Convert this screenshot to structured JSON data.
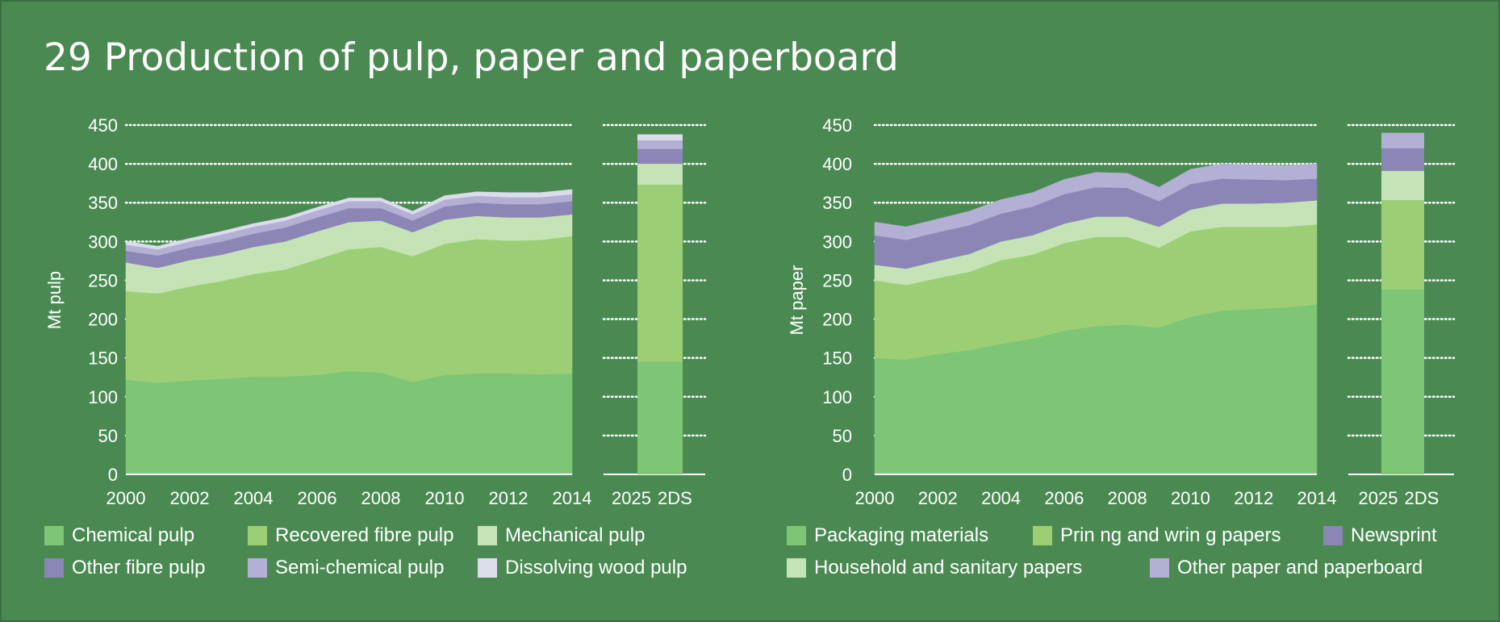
{
  "title": "29 Production of pulp, paper and paperboard",
  "chart_data": [
    {
      "type": "area",
      "stacked": true,
      "ylabel": "Mt pulp",
      "ylim": [
        0,
        450
      ],
      "yticks": [
        "0",
        "50",
        "100",
        "150",
        "200",
        "250",
        "300",
        "350",
        "400",
        "450"
      ],
      "x": [
        2000,
        2001,
        2002,
        2003,
        2004,
        2005,
        2006,
        2007,
        2008,
        2009,
        2010,
        2011,
        2012,
        2013,
        2014
      ],
      "xticks": [
        "2000",
        "2002",
        "2004",
        "2006",
        "2008",
        "2010",
        "2012",
        "2014"
      ],
      "grid": true,
      "legend_position": "bottom",
      "series": [
        {
          "name": "Chemical pulp",
          "color": "#7ec576",
          "values": [
            122,
            118,
            121,
            123,
            126,
            126,
            128,
            133,
            131,
            119,
            128,
            130,
            130,
            129,
            130
          ]
        },
        {
          "name": "Recovered fibre pulp",
          "color": "#9ccf75",
          "values": [
            114,
            115,
            121,
            126,
            132,
            138,
            149,
            157,
            162,
            162,
            169,
            173,
            171,
            173,
            177
          ]
        },
        {
          "name": "Mechanical pulp",
          "color": "#c6e3b5",
          "values": [
            37,
            33,
            34,
            34,
            35,
            36,
            36,
            35,
            34,
            31,
            31,
            30,
            30,
            29,
            28
          ]
        },
        {
          "name": "Other fibre pulp",
          "color": "#8b86b6",
          "values": [
            15,
            16,
            16,
            17,
            17,
            18,
            18,
            18,
            16,
            15,
            17,
            17,
            17,
            17,
            17
          ]
        },
        {
          "name": "Semi-chemical pulp",
          "color": "#b3afd5",
          "values": [
            8,
            8,
            8,
            9,
            9,
            9,
            9,
            9,
            9,
            8,
            9,
            9,
            9,
            9,
            9
          ]
        },
        {
          "name": "Dissolving wood pulp",
          "color": "#dcdcec",
          "values": [
            4,
            4,
            4,
            4,
            4,
            4,
            4,
            4,
            4,
            4,
            5,
            5,
            6,
            6,
            6
          ]
        }
      ],
      "projection": {
        "label_year": "2025",
        "label_scenario": "2DS",
        "values": [
          145,
          228,
          27,
          19,
          11,
          8
        ]
      }
    },
    {
      "type": "area",
      "stacked": true,
      "ylabel": "Mt paper",
      "ylim": [
        0,
        450
      ],
      "yticks": [
        "0",
        "50",
        "100",
        "150",
        "200",
        "250",
        "300",
        "350",
        "400",
        "450"
      ],
      "x": [
        2000,
        2001,
        2002,
        2003,
        2004,
        2005,
        2006,
        2007,
        2008,
        2009,
        2010,
        2011,
        2012,
        2013,
        2014
      ],
      "xticks": [
        "2000",
        "2002",
        "2004",
        "2006",
        "2008",
        "2010",
        "2012",
        "2014"
      ],
      "grid": true,
      "legend_position": "bottom",
      "series": [
        {
          "name": "Packaging materials",
          "color": "#7ec576",
          "values": [
            150,
            148,
            155,
            160,
            168,
            175,
            185,
            191,
            193,
            189,
            203,
            211,
            213,
            215,
            219
          ]
        },
        {
          "name": "Prin ng and wrin g papers",
          "color": "#9ccf75",
          "values": [
            100,
            96,
            98,
            101,
            108,
            108,
            113,
            115,
            113,
            103,
            110,
            108,
            106,
            104,
            103
          ]
        },
        {
          "name": "Household and sanitary papers",
          "color": "#c6e3b5",
          "values": [
            20,
            21,
            22,
            23,
            24,
            25,
            25,
            26,
            26,
            27,
            28,
            30,
            30,
            31,
            31
          ]
        },
        {
          "name": "Newsprint",
          "color": "#8b86b6",
          "values": [
            38,
            37,
            37,
            37,
            36,
            37,
            38,
            38,
            37,
            33,
            33,
            32,
            31,
            29,
            28
          ]
        },
        {
          "name": "Other paper and paperboard",
          "color": "#b3afd5",
          "values": [
            17,
            17,
            17,
            18,
            18,
            18,
            19,
            19,
            19,
            18,
            19,
            19,
            19,
            19,
            19
          ]
        }
      ],
      "projection": {
        "label_year": "2025",
        "label_scenario": "2DS",
        "values": [
          238,
          115,
          38,
          29,
          20
        ]
      }
    }
  ]
}
